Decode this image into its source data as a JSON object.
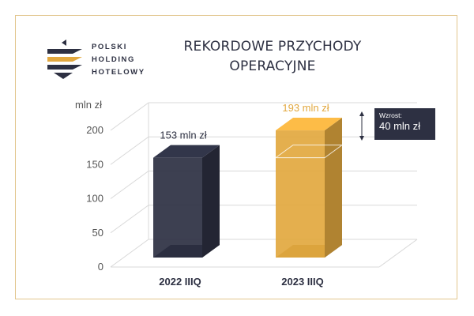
{
  "logo": {
    "line1": "POLSKI",
    "line2": "HOLDING",
    "line3": "HOTELOWY",
    "colors": {
      "dark": "#2d3042",
      "gold": "#e2a83f"
    }
  },
  "title": {
    "line1": "REKORDOWE PRZYCHODY",
    "line2": "OPERACYJNE"
  },
  "annotation": {
    "label": "Wzrost:",
    "value": "40 mln zł"
  },
  "chart_data": {
    "type": "bar",
    "categories": [
      "2022  IIIQ",
      "2023  IIIQ"
    ],
    "values": [
      153,
      193
    ],
    "data_labels": [
      "153 mln zł",
      "193 mln zł"
    ],
    "ylabel": "mln zł",
    "ylim": [
      0,
      200
    ],
    "yticks": [
      0,
      50,
      100,
      150,
      200
    ],
    "grid": true,
    "colors": [
      "#2d3042",
      "#e2a83f"
    ]
  }
}
